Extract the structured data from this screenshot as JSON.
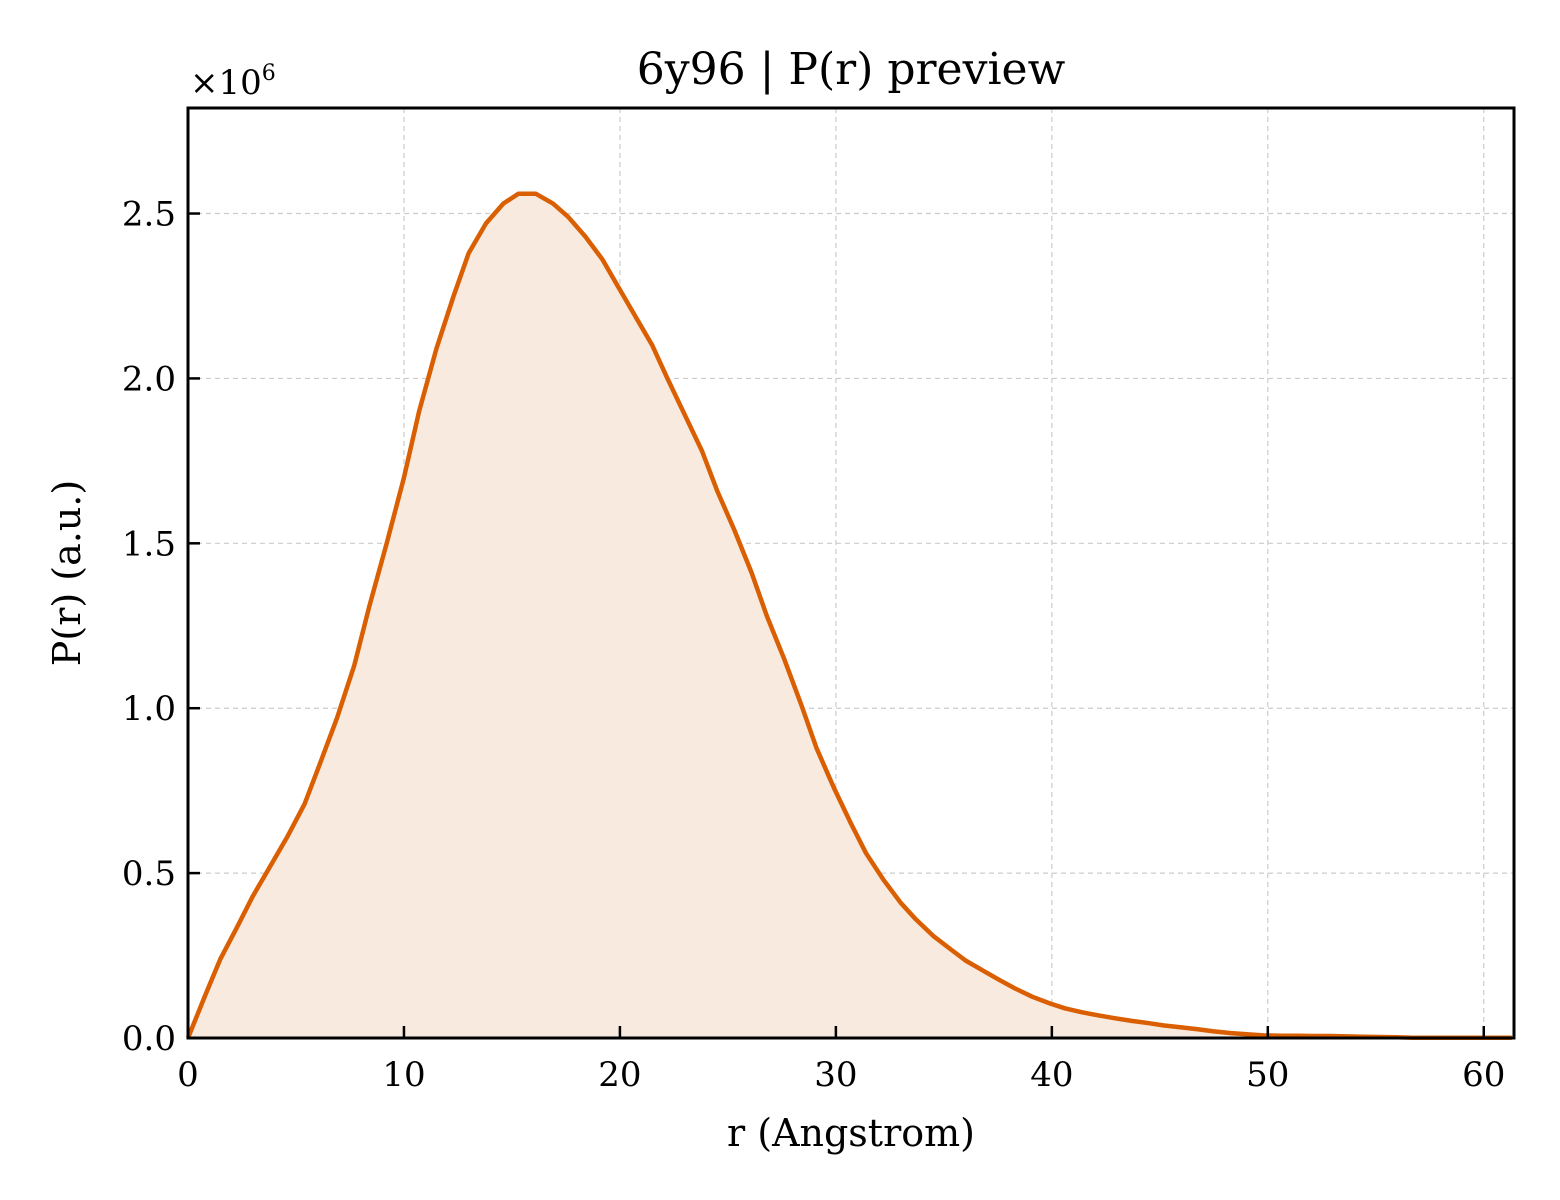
{
  "chart_data": {
    "type": "area",
    "title": "6y96 | P(r) preview",
    "xlabel": "r (Angstrom)",
    "ylabel": "P(r) (a.u.)",
    "y_multiplier_base": "×10",
    "y_multiplier_exp": "6",
    "xlim": [
      0,
      61.4
    ],
    "ylim": [
      0,
      2.82
    ],
    "xticks": [
      0,
      10,
      20,
      30,
      40,
      50,
      60
    ],
    "xtick_labels": [
      "0",
      "10",
      "20",
      "30",
      "40",
      "50",
      "60"
    ],
    "yticks": [
      0,
      0.5,
      1.0,
      1.5,
      2.0,
      2.5
    ],
    "ytick_labels": [
      "0.0",
      "0.5",
      "1.0",
      "1.5",
      "2.0",
      "2.5"
    ],
    "grid": true,
    "line_color": "#d95f02",
    "fill_color": "#f9eadf",
    "series": [
      {
        "x": [
          0,
          0.8,
          1.5,
          2.3,
          3.0,
          3.8,
          4.6,
          5.4,
          6.1,
          6.9,
          7.7,
          8.4,
          9.2,
          10.0,
          10.7,
          11.5,
          12.3,
          13.0,
          13.8,
          14.6,
          15.3,
          16.1,
          16.9,
          17.6,
          18.4,
          19.2,
          19.9,
          20.7,
          21.5,
          22.2,
          23.0,
          23.8,
          24.5,
          25.3,
          26.1,
          26.8,
          27.6,
          28.4,
          29.1,
          29.9,
          30.7,
          31.4,
          32.2,
          33.0,
          33.7,
          34.5,
          35.3,
          36.0,
          36.8,
          37.6,
          38.3,
          39.1,
          39.9,
          40.6,
          41.4,
          42.2,
          42.9,
          43.7,
          44.5,
          45.2,
          46.0,
          46.8,
          47.5,
          48.3,
          49.1,
          49.8,
          50.6,
          51.4,
          52.1,
          52.9,
          53.7,
          54.4,
          55.2,
          56.0,
          56.7,
          57.5,
          58.3,
          59.0,
          59.8,
          60.6,
          61.3
        ],
        "y": [
          0,
          0.13,
          0.24,
          0.34,
          0.43,
          0.52,
          0.61,
          0.71,
          0.83,
          0.97,
          1.13,
          1.31,
          1.5,
          1.7,
          1.9,
          2.09,
          2.25,
          2.38,
          2.47,
          2.53,
          2.56,
          2.56,
          2.53,
          2.49,
          2.43,
          2.36,
          2.28,
          2.19,
          2.1,
          2.0,
          1.89,
          1.78,
          1.66,
          1.54,
          1.41,
          1.28,
          1.15,
          1.01,
          0.88,
          0.76,
          0.65,
          0.56,
          0.48,
          0.41,
          0.36,
          0.31,
          0.27,
          0.235,
          0.205,
          0.175,
          0.15,
          0.125,
          0.105,
          0.09,
          0.078,
          0.068,
          0.06,
          0.052,
          0.045,
          0.038,
          0.032,
          0.026,
          0.02,
          0.015,
          0.011,
          0.008,
          0.007,
          0.007,
          0.006,
          0.006,
          0.005,
          0.004,
          0.003,
          0.002,
          0.001,
          0.0005,
          0.0005,
          0.0008,
          0.001,
          0.001,
          0.0005
        ]
      }
    ]
  }
}
